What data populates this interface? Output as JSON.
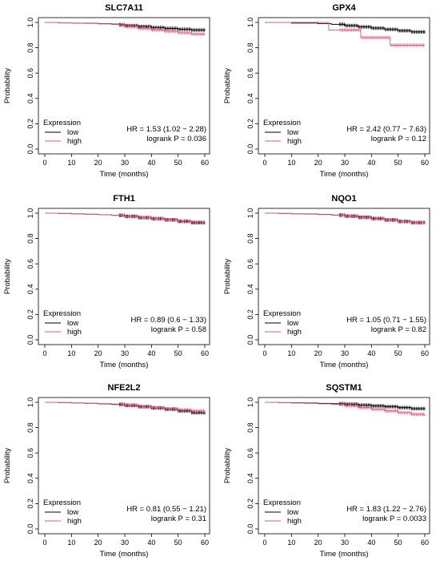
{
  "colors": {
    "low": "#000000",
    "high": "#e8557a",
    "axis": "#000000"
  },
  "chart_data": [
    {
      "type": "line",
      "title": "SLC7A11",
      "xlabel": "Time (months)",
      "ylabel": "Probability",
      "xlim": [
        0,
        60
      ],
      "ylim": [
        0,
        1
      ],
      "xticks": [
        0,
        10,
        20,
        30,
        40,
        50,
        60
      ],
      "yticks": [
        0.0,
        0.2,
        0.4,
        0.6,
        0.8,
        1.0
      ],
      "legend": {
        "title": "Expression",
        "position": "bottom-left"
      },
      "annotation": [
        "HR = 1.53 (1.02 − 2.28)",
        "logrank P = 0.036"
      ],
      "series": [
        {
          "name": "low",
          "color": "#000000",
          "x": [
            0,
            5,
            10,
            15,
            20,
            25,
            28,
            30,
            35,
            40,
            45,
            50,
            55,
            60
          ],
          "y": [
            1.0,
            0.997,
            0.995,
            0.993,
            0.99,
            0.987,
            0.982,
            0.975,
            0.968,
            0.96,
            0.953,
            0.946,
            0.94,
            0.935
          ]
        },
        {
          "name": "high",
          "color": "#e8557a",
          "x": [
            0,
            5,
            10,
            15,
            20,
            25,
            28,
            30,
            35,
            40,
            45,
            50,
            55,
            60
          ],
          "y": [
            1.0,
            0.997,
            0.994,
            0.992,
            0.988,
            0.984,
            0.978,
            0.965,
            0.952,
            0.94,
            0.93,
            0.918,
            0.908,
            0.9
          ]
        }
      ]
    },
    {
      "type": "line",
      "title": "GPX4",
      "xlabel": "Time (months)",
      "ylabel": "Probability",
      "xlim": [
        0,
        60
      ],
      "ylim": [
        0,
        1
      ],
      "xticks": [
        0,
        10,
        20,
        30,
        40,
        50,
        60
      ],
      "yticks": [
        0.0,
        0.2,
        0.4,
        0.6,
        0.8,
        1.0
      ],
      "legend": {
        "title": "Expression",
        "position": "bottom-left"
      },
      "annotation": [
        "HR = 2.42 (0.77 − 7.63)",
        "logrank P = 0.12"
      ],
      "series": [
        {
          "name": "low",
          "color": "#000000",
          "x": [
            0,
            10,
            20,
            25,
            30,
            35,
            40,
            45,
            50,
            55,
            60
          ],
          "y": [
            1.0,
            0.995,
            0.99,
            0.985,
            0.975,
            0.965,
            0.955,
            0.945,
            0.935,
            0.925,
            0.915
          ]
        },
        {
          "name": "high",
          "color": "#e8557a",
          "x": [
            0,
            20,
            24,
            24,
            36,
            36,
            47,
            47,
            60
          ],
          "y": [
            1.0,
            1.0,
            1.0,
            0.94,
            0.94,
            0.88,
            0.88,
            0.82,
            0.82
          ]
        }
      ]
    },
    {
      "type": "line",
      "title": "FTH1",
      "xlabel": "Time (months)",
      "ylabel": "Probability",
      "xlim": [
        0,
        60
      ],
      "ylim": [
        0,
        1
      ],
      "xticks": [
        0,
        10,
        20,
        30,
        40,
        50,
        60
      ],
      "yticks": [
        0.0,
        0.2,
        0.4,
        0.6,
        0.8,
        1.0
      ],
      "legend": {
        "title": "Expression",
        "position": "bottom-left"
      },
      "annotation": [
        "HR = 0.89 (0.6 − 1.33)",
        "logrank P = 0.58"
      ],
      "series": [
        {
          "name": "low",
          "color": "#000000",
          "x": [
            0,
            5,
            10,
            15,
            20,
            25,
            30,
            35,
            40,
            45,
            50,
            55,
            60
          ],
          "y": [
            1.0,
            0.998,
            0.995,
            0.992,
            0.988,
            0.983,
            0.975,
            0.965,
            0.957,
            0.948,
            0.935,
            0.925,
            0.915
          ]
        },
        {
          "name": "high",
          "color": "#e8557a",
          "x": [
            0,
            5,
            10,
            15,
            20,
            25,
            30,
            35,
            40,
            45,
            50,
            55,
            60
          ],
          "y": [
            1.0,
            0.998,
            0.995,
            0.992,
            0.987,
            0.982,
            0.973,
            0.964,
            0.955,
            0.946,
            0.938,
            0.93,
            0.922
          ]
        }
      ]
    },
    {
      "type": "line",
      "title": "NQO1",
      "xlabel": "Time (months)",
      "ylabel": "Probability",
      "xlim": [
        0,
        60
      ],
      "ylim": [
        0,
        1
      ],
      "xticks": [
        0,
        10,
        20,
        30,
        40,
        50,
        60
      ],
      "yticks": [
        0.0,
        0.2,
        0.4,
        0.6,
        0.8,
        1.0
      ],
      "legend": {
        "title": "Expression",
        "position": "bottom-left"
      },
      "annotation": [
        "HR = 1.05 (0.71 − 1.55)",
        "logrank P = 0.82"
      ],
      "series": [
        {
          "name": "low",
          "color": "#000000",
          "x": [
            0,
            5,
            10,
            15,
            20,
            25,
            30,
            35,
            40,
            45,
            50,
            55,
            60
          ],
          "y": [
            1.0,
            0.998,
            0.995,
            0.993,
            0.99,
            0.985,
            0.977,
            0.968,
            0.958,
            0.947,
            0.935,
            0.926,
            0.92
          ]
        },
        {
          "name": "high",
          "color": "#e8557a",
          "x": [
            0,
            5,
            10,
            15,
            20,
            25,
            30,
            35,
            40,
            45,
            50,
            55,
            60
          ],
          "y": [
            1.0,
            0.998,
            0.995,
            0.992,
            0.989,
            0.984,
            0.975,
            0.965,
            0.955,
            0.945,
            0.933,
            0.924,
            0.917
          ]
        }
      ]
    },
    {
      "type": "line",
      "title": "NFE2L2",
      "xlabel": "Time (months)",
      "ylabel": "Probability",
      "xlim": [
        0,
        60
      ],
      "ylim": [
        0,
        1
      ],
      "xticks": [
        0,
        10,
        20,
        30,
        40,
        50,
        60
      ],
      "yticks": [
        0.0,
        0.2,
        0.4,
        0.6,
        0.8,
        1.0
      ],
      "legend": {
        "title": "Expression",
        "position": "bottom-left"
      },
      "annotation": [
        "HR = 0.81 (0.55 − 1.21)",
        "logrank P = 0.31"
      ],
      "series": [
        {
          "name": "low",
          "color": "#000000",
          "x": [
            0,
            5,
            10,
            15,
            20,
            25,
            30,
            35,
            40,
            45,
            50,
            55,
            60
          ],
          "y": [
            1.0,
            0.998,
            0.995,
            0.992,
            0.988,
            0.983,
            0.975,
            0.965,
            0.955,
            0.945,
            0.932,
            0.918,
            0.905
          ]
        },
        {
          "name": "high",
          "color": "#e8557a",
          "x": [
            0,
            5,
            10,
            15,
            20,
            25,
            30,
            35,
            40,
            45,
            50,
            55,
            60
          ],
          "y": [
            1.0,
            0.998,
            0.995,
            0.993,
            0.99,
            0.986,
            0.978,
            0.968,
            0.958,
            0.949,
            0.94,
            0.932,
            0.925
          ]
        }
      ]
    },
    {
      "type": "line",
      "title": "SQSTM1",
      "xlabel": "Time (months)",
      "ylabel": "Probability",
      "xlim": [
        0,
        60
      ],
      "ylim": [
        0,
        1
      ],
      "xticks": [
        0,
        10,
        20,
        30,
        40,
        50,
        60
      ],
      "yticks": [
        0.0,
        0.2,
        0.4,
        0.6,
        0.8,
        1.0
      ],
      "legend": {
        "title": "Expression",
        "position": "bottom-left"
      },
      "annotation": [
        "HR = 1.83 (1.22 − 2.76)",
        "logrank P = 0.0033"
      ],
      "series": [
        {
          "name": "low",
          "color": "#000000",
          "x": [
            0,
            5,
            10,
            15,
            20,
            25,
            30,
            35,
            40,
            45,
            50,
            55,
            60
          ],
          "y": [
            1.0,
            0.998,
            0.996,
            0.994,
            0.992,
            0.989,
            0.985,
            0.978,
            0.972,
            0.966,
            0.958,
            0.95,
            0.945
          ]
        },
        {
          "name": "high",
          "color": "#e8557a",
          "x": [
            0,
            5,
            10,
            15,
            20,
            25,
            30,
            35,
            40,
            45,
            50,
            55,
            60
          ],
          "y": [
            1.0,
            0.997,
            0.994,
            0.991,
            0.988,
            0.983,
            0.972,
            0.958,
            0.945,
            0.932,
            0.918,
            0.905,
            0.892
          ]
        }
      ]
    }
  ]
}
